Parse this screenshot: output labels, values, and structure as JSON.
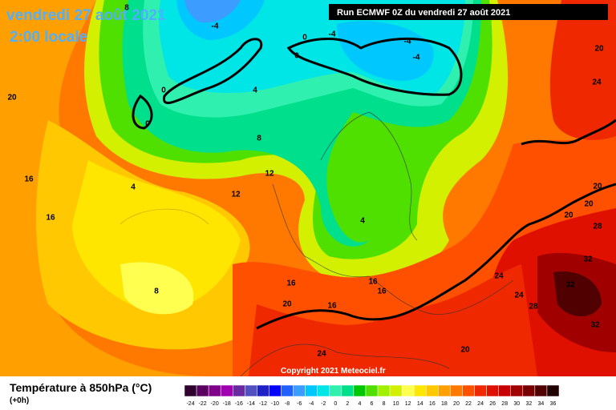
{
  "header": {
    "date": "vendredi 27 août 2021",
    "time": "2:00 locale",
    "run": "Run ECMWF 0Z du vendredi 27 août 2021"
  },
  "copyright": "Copyright 2021 Meteociel.fr",
  "footer": {
    "title": "Température à 850hPa (°C)",
    "step": "(+0h)"
  },
  "legend": {
    "labels": [
      -24,
      -22,
      -20,
      -18,
      -16,
      -14,
      -12,
      -10,
      -8,
      -6,
      -4,
      -2,
      0,
      2,
      4,
      6,
      8,
      10,
      12,
      14,
      16,
      18,
      20,
      22,
      24,
      26,
      28,
      30,
      32,
      34,
      36
    ],
    "colors": [
      "#2d0030",
      "#5a0060",
      "#80008a",
      "#a000b0",
      "#6a2aa0",
      "#5050c0",
      "#2020c8",
      "#0000ff",
      "#2060ff",
      "#3c9cff",
      "#00c8ff",
      "#00e6e6",
      "#30f0b0",
      "#00e08c",
      "#00c800",
      "#50e000",
      "#a0f000",
      "#d2f000",
      "#ffff50",
      "#ffe600",
      "#ffc800",
      "#ffa000",
      "#ff7800",
      "#ff5000",
      "#f02800",
      "#e01000",
      "#c80000",
      "#a00000",
      "#780000",
      "#500000",
      "#200000"
    ]
  },
  "map_labels": [
    "8",
    "-4",
    "0",
    "0",
    "-4",
    "-4",
    "-4",
    "0",
    "0",
    "4",
    "8",
    "4",
    "12",
    "12",
    "4",
    "20",
    "16",
    "16",
    "8",
    "16",
    "16",
    "16",
    "16",
    "20",
    "24",
    "20",
    "24",
    "24",
    "28",
    "32",
    "32",
    "32",
    "28",
    "20",
    "20",
    "20",
    "24",
    "20"
  ]
}
